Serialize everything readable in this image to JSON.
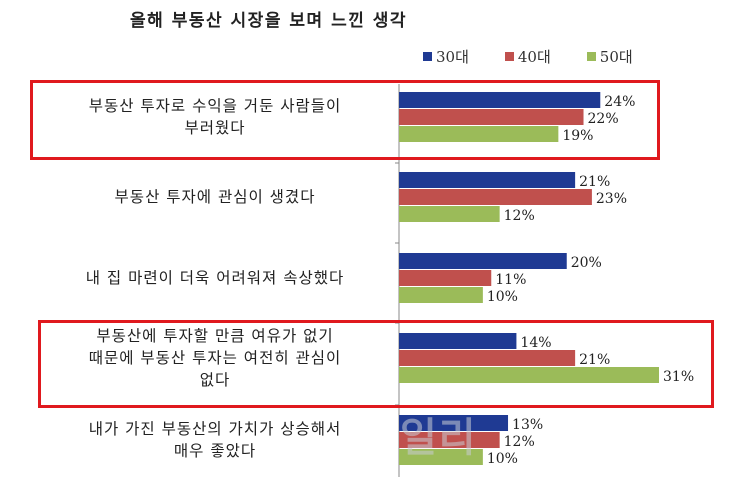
{
  "chart_data": {
    "type": "bar",
    "orientation": "horizontal",
    "title": "올해 부동산 시장을 보며 느낀 생각",
    "categories": [
      [
        "부동산 투자로 수익을 거둔 사람들이",
        "부러웠다"
      ],
      [
        "부동산 투자에 관심이 생겼다"
      ],
      [
        "내 집 마련이 더욱 어려워져 속상했다"
      ],
      [
        "부동산에 투자할 만큼 여유가 없기",
        "때문에 부동산 투자는 여전히 관심이",
        "없다"
      ],
      [
        "내가 가진 부동산의 가치가 상승해서",
        "매우 좋았다"
      ]
    ],
    "series": [
      {
        "name": "30대",
        "color": "#1f3a93",
        "values": [
          24,
          21,
          20,
          14,
          13
        ],
        "labels": [
          "24%",
          "21%",
          "20%",
          "14%",
          "13%"
        ]
      },
      {
        "name": "40대",
        "color": "#c0504d",
        "values": [
          22,
          23,
          11,
          21,
          12
        ],
        "labels": [
          "22%",
          "23%",
          "11%",
          "21%",
          "12%"
        ]
      },
      {
        "name": "50대",
        "color": "#9bbb59",
        "values": [
          19,
          12,
          10,
          31,
          10
        ],
        "labels": [
          "19%",
          "12%",
          "10%",
          "31%",
          "10%"
        ]
      }
    ],
    "xlim": [
      0,
      31
    ],
    "legend": "top-right",
    "highlighted_categories": [
      0,
      3
    ],
    "highlight_color": "#e0191e"
  },
  "watermark": "일리"
}
